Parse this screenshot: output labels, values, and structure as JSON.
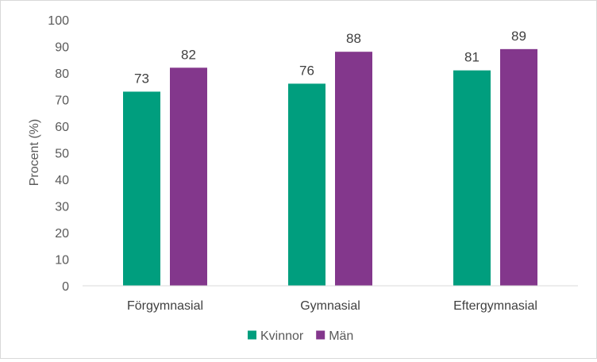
{
  "chart_data": {
    "type": "bar",
    "title": "",
    "xlabel": "",
    "ylabel": "Procent (%)",
    "ylim": [
      0,
      100
    ],
    "yticks": [
      0,
      10,
      20,
      30,
      40,
      50,
      60,
      70,
      80,
      90,
      100
    ],
    "categories": [
      "Förgymnasial",
      "Gymnasial",
      "Eftergymnasial"
    ],
    "series": [
      {
        "name": "Kvinnor",
        "color": "#009e7e",
        "values": [
          73,
          76,
          81
        ]
      },
      {
        "name": "Män",
        "color": "#83378c",
        "values": [
          82,
          88,
          89
        ]
      }
    ],
    "grid": false,
    "legend": "bottom",
    "data_labels": true
  }
}
